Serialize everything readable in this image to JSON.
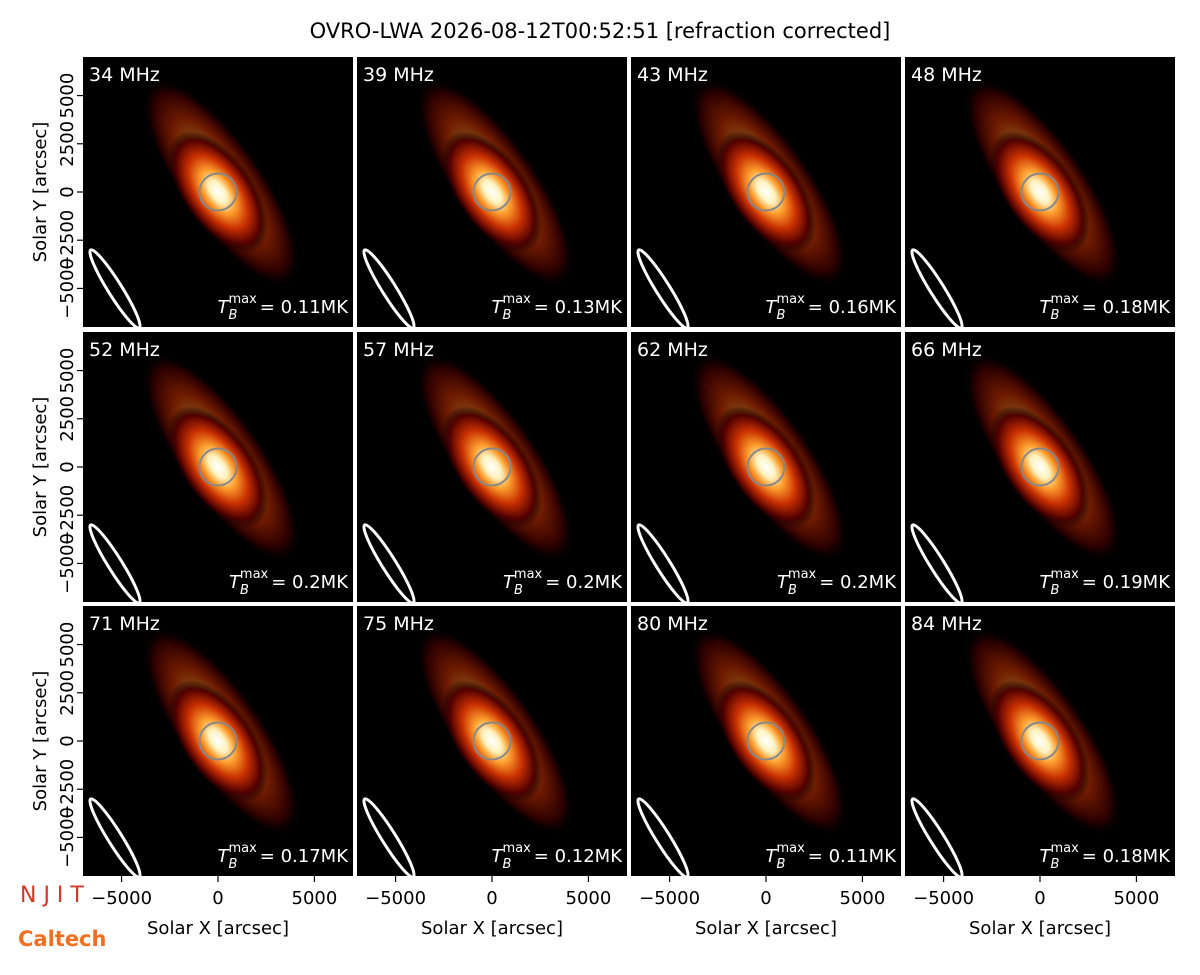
{
  "chart_data": {
    "type": "image-grid",
    "title": "OVRO-LWA 2026-08-12T00:52:51 [refraction corrected]",
    "xlabel": "Solar X [arcsec]",
    "ylabel": "Solar Y [arcsec]",
    "xlim": [
      -7000,
      7000
    ],
    "ylim": [
      -7000,
      7000
    ],
    "xticks": [
      {
        "value": -5000,
        "label": "−5000"
      },
      0,
      5000
    ],
    "yticks": [
      {
        "value": -5000,
        "label": "−5000"
      },
      {
        "value": -2500,
        "label": "−2500"
      },
      0,
      2500,
      5000
    ],
    "colormap": "hot",
    "tmax_symbol": {
      "base": "T",
      "sub": "B",
      "sup": "max"
    },
    "panels": [
      {
        "label": "34 MHz",
        "tmax_label": "= 0.11MK"
      },
      {
        "label": "39 MHz",
        "tmax_label": "= 0.13MK"
      },
      {
        "label": "43 MHz",
        "tmax_label": "= 0.16MK"
      },
      {
        "label": "48 MHz",
        "tmax_label": "= 0.18MK"
      },
      {
        "label": "52 MHz",
        "tmax_label": "= 0.2MK"
      },
      {
        "label": "57 MHz",
        "tmax_label": "= 0.2MK"
      },
      {
        "label": "62 MHz",
        "tmax_label": "= 0.2MK"
      },
      {
        "label": "66 MHz",
        "tmax_label": "= 0.19MK"
      },
      {
        "label": "71 MHz",
        "tmax_label": "= 0.17MK"
      },
      {
        "label": "75 MHz",
        "tmax_label": "= 0.12MK"
      },
      {
        "label": "80 MHz",
        "tmax_label": "= 0.11MK"
      },
      {
        "label": "84 MHz",
        "tmax_label": "= 0.18MK"
      }
    ],
    "logos": [
      "N J I T",
      "Caltech"
    ]
  }
}
